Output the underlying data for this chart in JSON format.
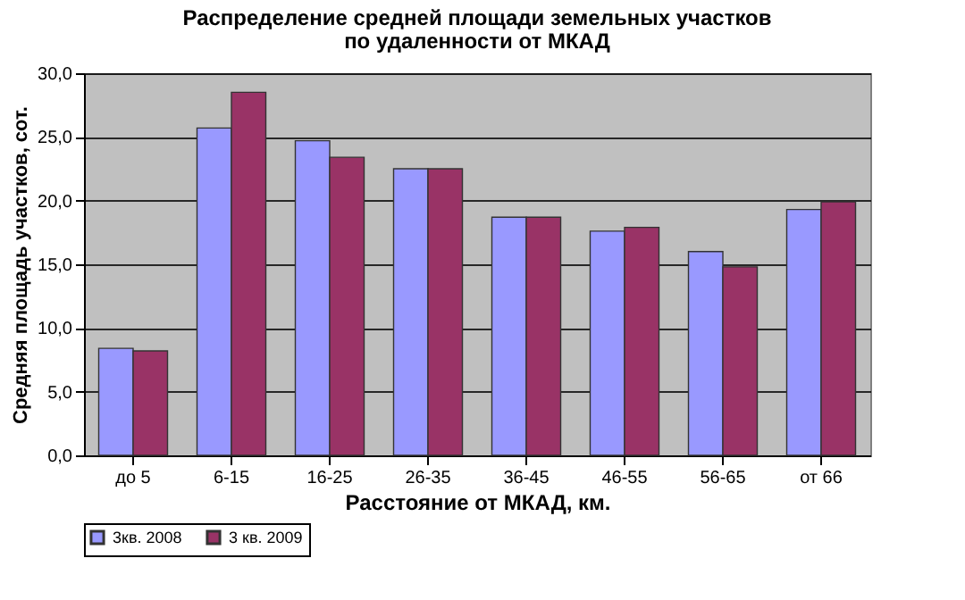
{
  "chart_data": {
    "type": "bar",
    "title": "Распределение средней площади земельных участков",
    "subtitle": "по удаленности от МКАД",
    "xlabel": "Расстояние от МКАД, км.",
    "ylabel": "Средняя площадь участков, сот.",
    "categories": [
      "до 5",
      "6-15",
      "16-25",
      "26-35",
      "36-45",
      "46-55",
      "56-65",
      "от 66"
    ],
    "series": [
      {
        "name": "3кв. 2008",
        "color": "#9999ff",
        "values": [
          8.4,
          25.7,
          24.7,
          22.5,
          18.7,
          17.6,
          16.0,
          19.3
        ]
      },
      {
        "name": "3 кв. 2009",
        "color": "#993366",
        "values": [
          8.2,
          28.5,
          23.4,
          22.5,
          18.7,
          17.9,
          14.8,
          19.9
        ]
      }
    ],
    "ylim": [
      0,
      30
    ],
    "yticks": [
      {
        "value": 0,
        "label": "0,0"
      },
      {
        "value": 5,
        "label": "5,0"
      },
      {
        "value": 10,
        "label": "10,0"
      },
      {
        "value": 15,
        "label": "15,0"
      },
      {
        "value": 20,
        "label": "20,0"
      },
      {
        "value": 25,
        "label": "25,0"
      },
      {
        "value": 30,
        "label": "30,0"
      }
    ],
    "grid": "y",
    "legend": "bottom"
  }
}
